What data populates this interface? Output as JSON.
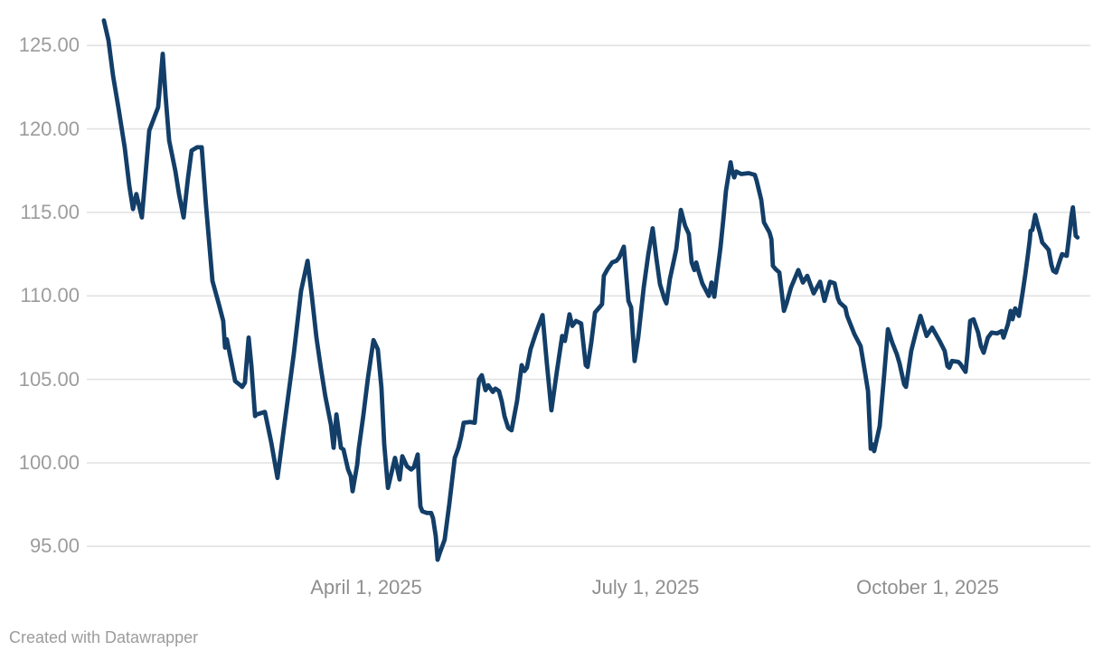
{
  "footer": {
    "text": "Created with Datawrapper"
  },
  "chart_data": {
    "type": "line",
    "title": "",
    "x_unit": "days since Jan 1, 2025",
    "x_range_days": [
      0,
      326
    ],
    "x_ticks": [
      {
        "day": 90,
        "label": "April 1, 2025"
      },
      {
        "day": 181,
        "label": "July 1, 2025"
      },
      {
        "day": 273,
        "label": "October 1, 2025"
      }
    ],
    "y_ticks": [
      {
        "value": 95,
        "label": "95.00"
      },
      {
        "value": 100,
        "label": "100.00"
      },
      {
        "value": 105,
        "label": "105.00"
      },
      {
        "value": 110,
        "label": "110.00"
      },
      {
        "value": 115,
        "label": "115.00"
      },
      {
        "value": 120,
        "label": "120.00"
      },
      {
        "value": 125,
        "label": "125.00"
      }
    ],
    "ylim": [
      93,
      127.5
    ],
    "grid": "horizontal-only",
    "legend": "none",
    "line_color": "#123e68",
    "label_color": "#9c9c9c",
    "grid_color": "#e2e2e2",
    "series": [
      {
        "name": "price-index",
        "points": [
          [
            4.5,
            126.5
          ],
          [
            6,
            125.3
          ],
          [
            7.5,
            123.2
          ],
          [
            9.3,
            121.2
          ],
          [
            11.3,
            118.9
          ],
          [
            12.8,
            116.6
          ],
          [
            14,
            115.2
          ],
          [
            15.1,
            116.1
          ],
          [
            16.9,
            114.7
          ],
          [
            19.3,
            119.9
          ],
          [
            22.2,
            121.3
          ],
          [
            23.7,
            124.5
          ],
          [
            24.6,
            122.0
          ],
          [
            25.8,
            119.3
          ],
          [
            27.8,
            117.5
          ],
          [
            29,
            116.1
          ],
          [
            30.5,
            114.7
          ],
          [
            31.9,
            117.0
          ],
          [
            33.1,
            118.7
          ],
          [
            34.9,
            118.9
          ],
          [
            36.4,
            118.9
          ],
          [
            37.8,
            115.4
          ],
          [
            39.9,
            110.9
          ],
          [
            42,
            109.5
          ],
          [
            43.4,
            108.5
          ],
          [
            44,
            106.9
          ],
          [
            44.6,
            107.4
          ],
          [
            47.3,
            104.9
          ],
          [
            48.7,
            104.7
          ],
          [
            49.6,
            104.55
          ],
          [
            50.5,
            104.8
          ],
          [
            51.7,
            107.5
          ],
          [
            52.6,
            105.8
          ],
          [
            53.8,
            102.8
          ],
          [
            54.3,
            102.9
          ],
          [
            57,
            103.05
          ],
          [
            59.1,
            101.2
          ],
          [
            61.1,
            99.1
          ],
          [
            63.5,
            102.5
          ],
          [
            66.4,
            106.5
          ],
          [
            68.8,
            110.3
          ],
          [
            70.9,
            112.1
          ],
          [
            72.3,
            110.0
          ],
          [
            73.8,
            107.5
          ],
          [
            75.3,
            105.6
          ],
          [
            76.7,
            104.0
          ],
          [
            78.5,
            102.3
          ],
          [
            79.4,
            100.9
          ],
          [
            80.3,
            102.9
          ],
          [
            81.8,
            100.9
          ],
          [
            82.6,
            100.8
          ],
          [
            84.1,
            99.6
          ],
          [
            85,
            99.2
          ],
          [
            85.6,
            98.3
          ],
          [
            87.1,
            99.9
          ],
          [
            87.6,
            100.85
          ],
          [
            89.1,
            102.85
          ],
          [
            90.6,
            105.1
          ],
          [
            91.5,
            106.25
          ],
          [
            92.4,
            107.35
          ],
          [
            93.8,
            106.8
          ],
          [
            95,
            104.5
          ],
          [
            95.9,
            101.1
          ],
          [
            97.1,
            98.5
          ],
          [
            99.4,
            100.3
          ],
          [
            100.9,
            99.0
          ],
          [
            101.8,
            100.4
          ],
          [
            103.3,
            99.8
          ],
          [
            104.7,
            99.6
          ],
          [
            105.6,
            99.75
          ],
          [
            106.8,
            100.5
          ],
          [
            107.2,
            98.9
          ],
          [
            107.7,
            97.4
          ],
          [
            108.3,
            97.1
          ],
          [
            109.8,
            97.0
          ],
          [
            111.2,
            97.0
          ],
          [
            111.8,
            96.7
          ],
          [
            112.7,
            95.6
          ],
          [
            113.3,
            94.2
          ],
          [
            113.9,
            94.55
          ],
          [
            115.6,
            95.4
          ],
          [
            117.1,
            97.5
          ],
          [
            118.9,
            100.3
          ],
          [
            120.1,
            100.9
          ],
          [
            121,
            101.6
          ],
          [
            121.8,
            102.4
          ],
          [
            123.9,
            102.45
          ],
          [
            125.4,
            102.4
          ],
          [
            126.8,
            105.0
          ],
          [
            127.7,
            105.25
          ],
          [
            128.9,
            104.35
          ],
          [
            129.8,
            104.65
          ],
          [
            131.3,
            104.25
          ],
          [
            132.1,
            104.45
          ],
          [
            133.3,
            104.3
          ],
          [
            134.2,
            103.7
          ],
          [
            135.1,
            102.8
          ],
          [
            136.3,
            102.1
          ],
          [
            137.4,
            101.95
          ],
          [
            139.2,
            103.7
          ],
          [
            140.7,
            105.85
          ],
          [
            141.6,
            105.5
          ],
          [
            142.4,
            105.7
          ],
          [
            143.6,
            106.8
          ],
          [
            145.4,
            107.8
          ],
          [
            147.5,
            108.85
          ],
          [
            148.9,
            106.0
          ],
          [
            150.4,
            103.15
          ],
          [
            152.2,
            105.5
          ],
          [
            153.9,
            107.6
          ],
          [
            154.8,
            107.3
          ],
          [
            156.3,
            108.9
          ],
          [
            157.2,
            108.2
          ],
          [
            158.4,
            108.5
          ],
          [
            160.1,
            108.35
          ],
          [
            161.6,
            105.85
          ],
          [
            162.2,
            105.75
          ],
          [
            163.4,
            107.2
          ],
          [
            164.6,
            109.0
          ],
          [
            166,
            109.3
          ],
          [
            166.9,
            109.5
          ],
          [
            167.5,
            111.2
          ],
          [
            168.7,
            111.6
          ],
          [
            170.2,
            112.0
          ],
          [
            171.6,
            112.1
          ],
          [
            172.5,
            112.3
          ],
          [
            174,
            112.95
          ],
          [
            175.5,
            109.7
          ],
          [
            176.4,
            109.3
          ],
          [
            177.5,
            106.1
          ],
          [
            178.7,
            107.5
          ],
          [
            180.5,
            110.5
          ],
          [
            182,
            112.5
          ],
          [
            183.4,
            114.05
          ],
          [
            184.6,
            112.3
          ],
          [
            185.8,
            110.7
          ],
          [
            187.3,
            109.8
          ],
          [
            187.9,
            109.55
          ],
          [
            189,
            111.0
          ],
          [
            190.2,
            112.0
          ],
          [
            191.1,
            112.8
          ],
          [
            192.6,
            115.15
          ],
          [
            194,
            114.2
          ],
          [
            195.2,
            113.7
          ],
          [
            196.1,
            112.0
          ],
          [
            197,
            111.55
          ],
          [
            197.6,
            112.0
          ],
          [
            198.4,
            111.45
          ],
          [
            199.6,
            110.75
          ],
          [
            201.7,
            110.0
          ],
          [
            202.6,
            110.8
          ],
          [
            203.5,
            109.95
          ],
          [
            204.4,
            111.3
          ],
          [
            205.5,
            112.9
          ],
          [
            206.4,
            114.5
          ],
          [
            207.3,
            116.3
          ],
          [
            208.8,
            118.0
          ],
          [
            209.4,
            117.4
          ],
          [
            210,
            117.1
          ],
          [
            210.6,
            117.45
          ],
          [
            212.3,
            117.3
          ],
          [
            214.7,
            117.35
          ],
          [
            216.7,
            117.25
          ],
          [
            217.3,
            116.9
          ],
          [
            218.8,
            115.75
          ],
          [
            219.7,
            114.4
          ],
          [
            220.6,
            114.1
          ],
          [
            221.5,
            113.8
          ],
          [
            222.1,
            113.4
          ],
          [
            222.6,
            111.8
          ],
          [
            223.5,
            111.6
          ],
          [
            224.7,
            111.4
          ],
          [
            226.2,
            109.1
          ],
          [
            227.1,
            109.6
          ],
          [
            228.5,
            110.5
          ],
          [
            230.9,
            111.55
          ],
          [
            232.4,
            110.8
          ],
          [
            233.8,
            111.2
          ],
          [
            235.9,
            110.15
          ],
          [
            238,
            110.85
          ],
          [
            239.4,
            109.7
          ],
          [
            241.2,
            110.85
          ],
          [
            242.7,
            110.75
          ],
          [
            243.8,
            109.85
          ],
          [
            244.4,
            109.6
          ],
          [
            246.2,
            109.3
          ],
          [
            246.8,
            108.8
          ],
          [
            249.2,
            107.7
          ],
          [
            251.2,
            107.0
          ],
          [
            252.7,
            105.35
          ],
          [
            253.6,
            104.3
          ],
          [
            254.5,
            100.85
          ],
          [
            255.1,
            101.1
          ],
          [
            255.6,
            100.7
          ],
          [
            257.4,
            102.2
          ],
          [
            258.9,
            105.3
          ],
          [
            260.1,
            108.0
          ],
          [
            261.5,
            107.2
          ],
          [
            263,
            106.5
          ],
          [
            263.9,
            105.95
          ],
          [
            265.4,
            104.7
          ],
          [
            266,
            104.55
          ],
          [
            267.7,
            106.7
          ],
          [
            269.2,
            107.8
          ],
          [
            270.7,
            108.8
          ],
          [
            272.7,
            107.6
          ],
          [
            274.5,
            108.1
          ],
          [
            277.1,
            107.25
          ],
          [
            278.6,
            106.7
          ],
          [
            279.5,
            105.8
          ],
          [
            280.1,
            105.7
          ],
          [
            281,
            106.1
          ],
          [
            283,
            106.05
          ],
          [
            283.6,
            105.95
          ],
          [
            284.5,
            105.7
          ],
          [
            285.4,
            105.45
          ],
          [
            286,
            106.5
          ],
          [
            286.9,
            108.5
          ],
          [
            288,
            108.6
          ],
          [
            289.5,
            107.8
          ],
          [
            290.4,
            107.0
          ],
          [
            291.3,
            106.6
          ],
          [
            292.7,
            107.5
          ],
          [
            293.9,
            107.8
          ],
          [
            295.7,
            107.75
          ],
          [
            297.2,
            107.9
          ],
          [
            297.8,
            107.5
          ],
          [
            299.2,
            108.3
          ],
          [
            300.1,
            109.1
          ],
          [
            300.7,
            108.6
          ],
          [
            301.6,
            109.25
          ],
          [
            302.8,
            108.8
          ],
          [
            304,
            110.2
          ],
          [
            304.9,
            111.3
          ],
          [
            305.7,
            112.4
          ],
          [
            306.3,
            113.3
          ],
          [
            306.6,
            113.9
          ],
          [
            307.2,
            113.95
          ],
          [
            308.1,
            114.85
          ],
          [
            309,
            114.2
          ],
          [
            309.6,
            113.8
          ],
          [
            310.4,
            113.2
          ],
          [
            311.6,
            112.95
          ],
          [
            312.5,
            112.75
          ],
          [
            313.4,
            111.85
          ],
          [
            314,
            111.5
          ],
          [
            314.9,
            111.4
          ],
          [
            316.3,
            112.2
          ],
          [
            316.9,
            112.5
          ],
          [
            318.4,
            112.4
          ],
          [
            319.3,
            113.8
          ],
          [
            319.9,
            114.75
          ],
          [
            320.4,
            115.3
          ],
          [
            321,
            114.2
          ],
          [
            321.3,
            113.6
          ],
          [
            321.9,
            113.5
          ]
        ]
      }
    ]
  }
}
